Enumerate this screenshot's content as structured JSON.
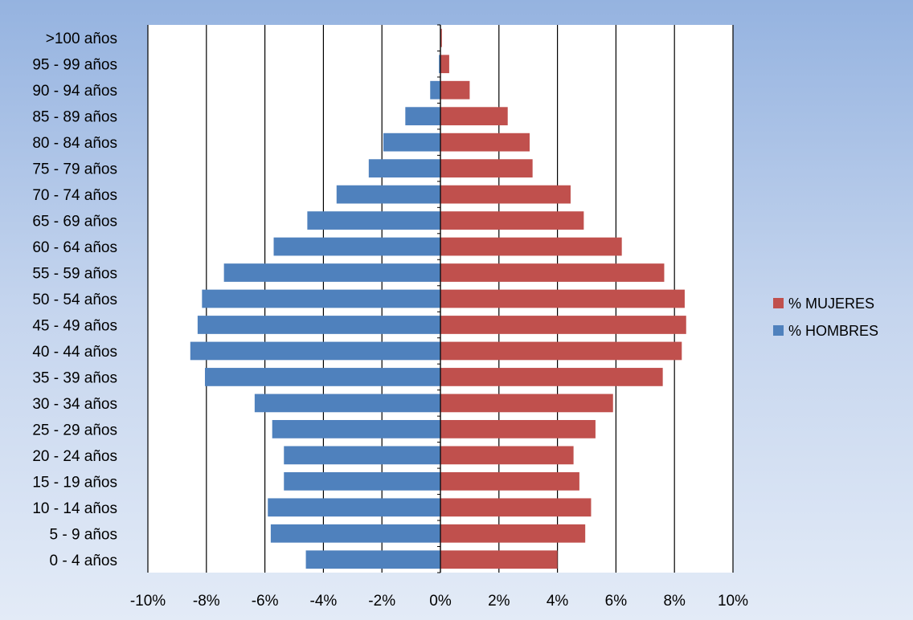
{
  "chart_data": {
    "type": "bar",
    "orientation": "horizontal",
    "stacked": "diverging",
    "categories": [
      "0 - 4 años",
      "5 - 9 años",
      "10 - 14  años",
      "15 - 19  años",
      "20 - 24  años",
      "25 - 29  años",
      "30 - 34  años",
      "35 - 39  años",
      "40 - 44 años",
      "45 - 49 años",
      "50 - 54 años",
      "55 - 59 años",
      "60 - 64 años",
      "65 - 69 años",
      "70 - 74 años",
      "75 - 79 años",
      "80 - 84 años",
      "85 - 89 años",
      "90 - 94 años",
      "95 - 99 años",
      ">100 años"
    ],
    "series": [
      {
        "name": "% MUJERES",
        "color": "#c0504d",
        "values": [
          4.0,
          4.95,
          5.15,
          4.75,
          4.55,
          5.3,
          5.9,
          7.6,
          8.25,
          8.4,
          8.35,
          7.65,
          6.2,
          4.9,
          4.45,
          3.15,
          3.05,
          2.3,
          1.0,
          0.3,
          0.05
        ]
      },
      {
        "name": "% HOMBRES",
        "color": "#4f81bd",
        "values": [
          -4.6,
          -5.8,
          -5.9,
          -5.35,
          -5.35,
          -5.75,
          -6.35,
          -8.05,
          -8.55,
          -8.3,
          -8.15,
          -7.4,
          -5.7,
          -4.55,
          -3.55,
          -2.45,
          -1.95,
          -1.2,
          -0.35,
          -0.05,
          0.0
        ]
      }
    ],
    "x_ticks": [
      "-10%",
      "-8%",
      "-6%",
      "-4%",
      "-2%",
      "0%",
      "2%",
      "4%",
      "6%",
      "8%",
      "10%"
    ],
    "xlim": [
      -10,
      10
    ],
    "grid": "vertical",
    "legend_position": "right"
  }
}
